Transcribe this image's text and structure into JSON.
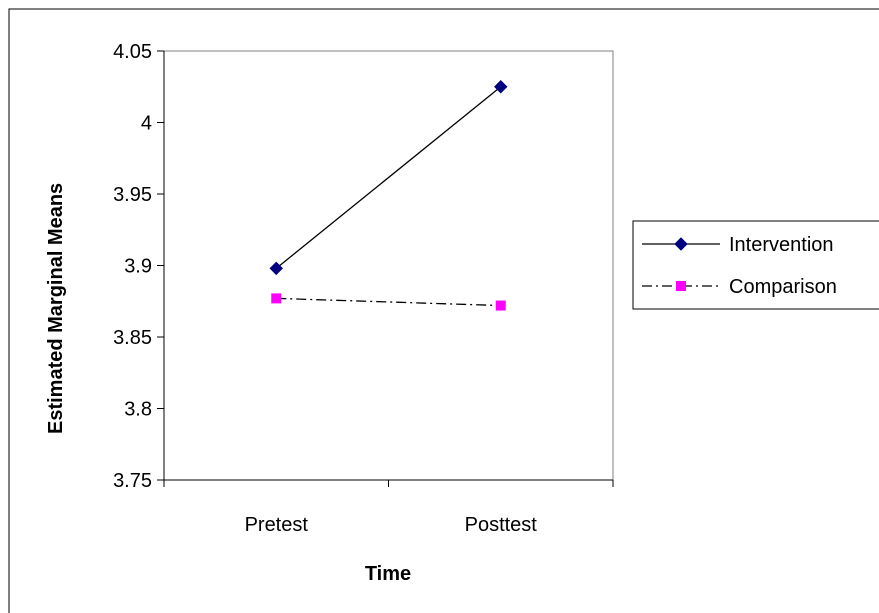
{
  "chart_data": {
    "type": "line",
    "title": "",
    "xlabel": "Time",
    "ylabel": "Estimated Marginal Means",
    "categories": [
      "Pretest",
      "Posttest"
    ],
    "ylim": [
      3.75,
      4.05
    ],
    "yticks": [
      3.75,
      3.8,
      3.85,
      3.9,
      3.95,
      4,
      4.05
    ],
    "ytick_labels": [
      "3.75",
      "3.8",
      "3.85",
      "3.9",
      "3.95",
      "4",
      "4.05"
    ],
    "grid": false,
    "legend_position": "right",
    "series": [
      {
        "name": "Intervention",
        "values": [
          3.898,
          4.025
        ],
        "color": "#000080",
        "marker": "diamond",
        "line": "solid",
        "line_color": "#000000"
      },
      {
        "name": "Comparison",
        "values": [
          3.877,
          3.872
        ],
        "color": "#ff00ff",
        "marker": "square",
        "line": "dash-dot",
        "line_color": "#000000"
      }
    ]
  }
}
